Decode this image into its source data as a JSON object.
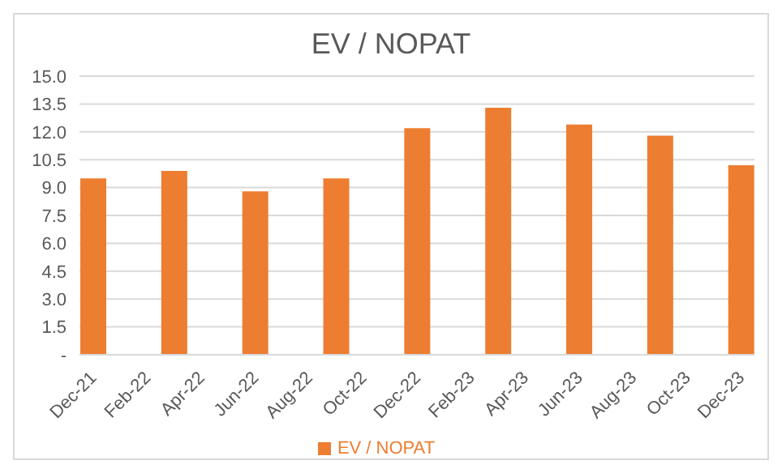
{
  "chart_data": {
    "type": "bar",
    "title": "EV / NOPAT",
    "categories": [
      "Dec-21",
      null,
      "Feb-22",
      null,
      "Apr-22",
      null,
      "Jun-22",
      null,
      "Aug-22",
      null,
      "Oct-22",
      null,
      "Dec-22",
      null,
      "Feb-23",
      null,
      "Apr-23",
      null,
      "Jun-23",
      null,
      "Aug-23",
      null,
      "Oct-23",
      null,
      "Dec-23"
    ],
    "series": [
      {
        "name": "EV / NOPAT",
        "color": "#ed7d31",
        "values": [
          9.5,
          null,
          null,
          9.9,
          null,
          null,
          8.8,
          null,
          null,
          9.5,
          null,
          null,
          12.2,
          null,
          null,
          13.3,
          null,
          null,
          12.4,
          null,
          null,
          11.8,
          null,
          null,
          10.2
        ]
      }
    ],
    "ylim": [
      0,
      15
    ],
    "yticks": [
      {
        "value": 0,
        "label": "-"
      },
      {
        "value": 1.5,
        "label": "1.5"
      },
      {
        "value": 3,
        "label": "3.0"
      },
      {
        "value": 4.5,
        "label": "4.5"
      },
      {
        "value": 6,
        "label": "6.0"
      },
      {
        "value": 7.5,
        "label": "7.5"
      },
      {
        "value": 9,
        "label": "9.0"
      },
      {
        "value": 10.5,
        "label": "10.5"
      },
      {
        "value": 12,
        "label": "12.0"
      },
      {
        "value": 13.5,
        "label": "13.5"
      },
      {
        "value": 15,
        "label": "15.0"
      }
    ],
    "grid": "y",
    "legend": "bottom"
  }
}
